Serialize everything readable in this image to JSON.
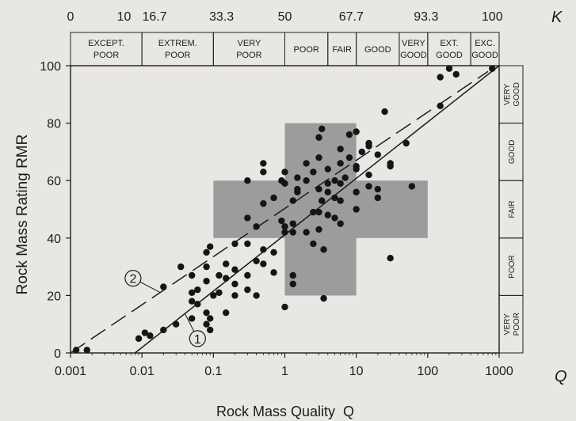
{
  "chart_data": {
    "type": "scatter",
    "title": "",
    "xlabel": "Rock Mass Quality  Q",
    "ylabel": "Rock Mass Rating RMR",
    "xscale": "log",
    "xlim": [
      0.001,
      1000
    ],
    "ylim": [
      0,
      100
    ],
    "x_axis_end_label": "Q",
    "x_ticks": [
      {
        "value": 0.001,
        "label": "0.001"
      },
      {
        "value": 0.01,
        "label": "0.01"
      },
      {
        "value": 0.1,
        "label": "0.1"
      },
      {
        "value": 1,
        "label": "1"
      },
      {
        "value": 10,
        "label": "10"
      },
      {
        "value": 100,
        "label": "100"
      },
      {
        "value": 1000,
        "label": "1000"
      }
    ],
    "y_ticks": [
      {
        "value": 0,
        "label": "0"
      },
      {
        "value": 20,
        "label": "20"
      },
      {
        "value": 40,
        "label": "40"
      },
      {
        "value": 60,
        "label": "60"
      },
      {
        "value": 80,
        "label": "80"
      },
      {
        "value": 100,
        "label": "100"
      }
    ],
    "grid": false,
    "top_axis": {
      "end_label": "K",
      "ticks": [
        {
          "q": 0.001,
          "label": "0"
        },
        {
          "q": 0.0056,
          "label": "10"
        },
        {
          "q": 0.015,
          "label": "16.7"
        },
        {
          "q": 0.13,
          "label": "33.3"
        },
        {
          "q": 1.0,
          "label": "50"
        },
        {
          "q": 8.5,
          "label": "67.7"
        },
        {
          "q": 95,
          "label": "93.3"
        },
        {
          "q": 800,
          "label": "100"
        }
      ]
    },
    "q_classes": [
      {
        "from": 0.001,
        "to": 0.01,
        "label": [
          "EXCEPT.",
          "POOR"
        ]
      },
      {
        "from": 0.01,
        "to": 0.1,
        "label": [
          "EXTREM.",
          "POOR"
        ]
      },
      {
        "from": 0.1,
        "to": 1,
        "label": [
          "VERY",
          "POOR"
        ]
      },
      {
        "from": 1,
        "to": 4,
        "label": [
          "POOR"
        ]
      },
      {
        "from": 4,
        "to": 10,
        "label": [
          "FAIR"
        ]
      },
      {
        "from": 10,
        "to": 40,
        "label": [
          "GOOD"
        ]
      },
      {
        "from": 40,
        "to": 100,
        "label": [
          "VERY",
          "GOOD"
        ]
      },
      {
        "from": 100,
        "to": 400,
        "label": [
          "EXT.",
          "GOOD"
        ]
      },
      {
        "from": 400,
        "to": 1000,
        "label": [
          "EXC.",
          "GOOD"
        ]
      }
    ],
    "rmr_classes": [
      {
        "from": 0,
        "to": 20,
        "label": "VERY POOR"
      },
      {
        "from": 20,
        "to": 40,
        "label": "POOR"
      },
      {
        "from": 40,
        "to": 60,
        "label": "FAIR"
      },
      {
        "from": 60,
        "to": 80,
        "label": "GOOD"
      },
      {
        "from": 80,
        "to": 100,
        "label": "VERY GOOD"
      }
    ],
    "shaded_cross": {
      "horizontal": {
        "q": [
          0.1,
          100
        ],
        "rmr": [
          40,
          60
        ]
      },
      "vertical": {
        "q": [
          1,
          10
        ],
        "rmr": [
          20,
          80
        ]
      },
      "color": "#9c9c9c"
    },
    "lines": [
      {
        "name": "1",
        "style": "solid",
        "points": [
          [
            0.008,
            0
          ],
          [
            1000,
            100
          ]
        ]
      },
      {
        "name": "2",
        "style": "dashed",
        "points": [
          [
            0.001,
            0
          ],
          [
            700,
            98
          ]
        ]
      }
    ],
    "line_labels": [
      {
        "text": "1",
        "q": 0.06,
        "rmr": 5
      },
      {
        "text": "2",
        "q": 0.0075,
        "rmr": 26
      }
    ],
    "points": [
      [
        0.0012,
        1
      ],
      [
        0.0017,
        1
      ],
      [
        0.009,
        5
      ],
      [
        0.011,
        7
      ],
      [
        0.013,
        6
      ],
      [
        0.02,
        23
      ],
      [
        0.02,
        8
      ],
      [
        0.03,
        10
      ],
      [
        0.035,
        30
      ],
      [
        0.05,
        12
      ],
      [
        0.05,
        27
      ],
      [
        0.05,
        21
      ],
      [
        0.05,
        18
      ],
      [
        0.06,
        22
      ],
      [
        0.06,
        17
      ],
      [
        0.08,
        25
      ],
      [
        0.08,
        35
      ],
      [
        0.08,
        14
      ],
      [
        0.08,
        30
      ],
      [
        0.08,
        10
      ],
      [
        0.09,
        37
      ],
      [
        0.09,
        8
      ],
      [
        0.09,
        12
      ],
      [
        0.1,
        20
      ],
      [
        0.12,
        27
      ],
      [
        0.12,
        21
      ],
      [
        0.15,
        31
      ],
      [
        0.15,
        26
      ],
      [
        0.15,
        14
      ],
      [
        0.2,
        29
      ],
      [
        0.2,
        24
      ],
      [
        0.2,
        20
      ],
      [
        0.2,
        38
      ],
      [
        0.3,
        47
      ],
      [
        0.3,
        38
      ],
      [
        0.3,
        27
      ],
      [
        0.3,
        22
      ],
      [
        0.3,
        60
      ],
      [
        0.4,
        44
      ],
      [
        0.4,
        32
      ],
      [
        0.4,
        20
      ],
      [
        0.5,
        52
      ],
      [
        0.5,
        36
      ],
      [
        0.5,
        31
      ],
      [
        0.5,
        63
      ],
      [
        0.5,
        66
      ],
      [
        0.7,
        54
      ],
      [
        0.7,
        35
      ],
      [
        0.7,
        28
      ],
      [
        0.9,
        46
      ],
      [
        0.9,
        60
      ],
      [
        1,
        63
      ],
      [
        1,
        59
      ],
      [
        1,
        44
      ],
      [
        1,
        42
      ],
      [
        1,
        16
      ],
      [
        1.3,
        53
      ],
      [
        1.3,
        45
      ],
      [
        1.3,
        42
      ],
      [
        1.3,
        27
      ],
      [
        1.3,
        24
      ],
      [
        1.5,
        61
      ],
      [
        1.5,
        56
      ],
      [
        1.5,
        57
      ],
      [
        2,
        60
      ],
      [
        2,
        66
      ],
      [
        2,
        42
      ],
      [
        2.5,
        63
      ],
      [
        2.5,
        49
      ],
      [
        2.5,
        38
      ],
      [
        3,
        75
      ],
      [
        3,
        68
      ],
      [
        3,
        57
      ],
      [
        3,
        49
      ],
      [
        3,
        43
      ],
      [
        3.3,
        78
      ],
      [
        3.3,
        53
      ],
      [
        3.5,
        19
      ],
      [
        3.5,
        36
      ],
      [
        4,
        64
      ],
      [
        4,
        59
      ],
      [
        4,
        56
      ],
      [
        4,
        48
      ],
      [
        5,
        60
      ],
      [
        5,
        54
      ],
      [
        5,
        47
      ],
      [
        6,
        71
      ],
      [
        6,
        66
      ],
      [
        6,
        59
      ],
      [
        6,
        53
      ],
      [
        6,
        45
      ],
      [
        7,
        61
      ],
      [
        8,
        68
      ],
      [
        8,
        76
      ],
      [
        10,
        77
      ],
      [
        10,
        65
      ],
      [
        10,
        64
      ],
      [
        10,
        56
      ],
      [
        10,
        50
      ],
      [
        12,
        70
      ],
      [
        15,
        72
      ],
      [
        15,
        58
      ],
      [
        15,
        73
      ],
      [
        15,
        62
      ],
      [
        20,
        69
      ],
      [
        20,
        54
      ],
      [
        20,
        57
      ],
      [
        25,
        84
      ],
      [
        30,
        65
      ],
      [
        30,
        66
      ],
      [
        30,
        33
      ],
      [
        50,
        73
      ],
      [
        60,
        58
      ],
      [
        150,
        96
      ],
      [
        150,
        86
      ],
      [
        200,
        99
      ],
      [
        250,
        97
      ],
      [
        800,
        99
      ]
    ]
  }
}
